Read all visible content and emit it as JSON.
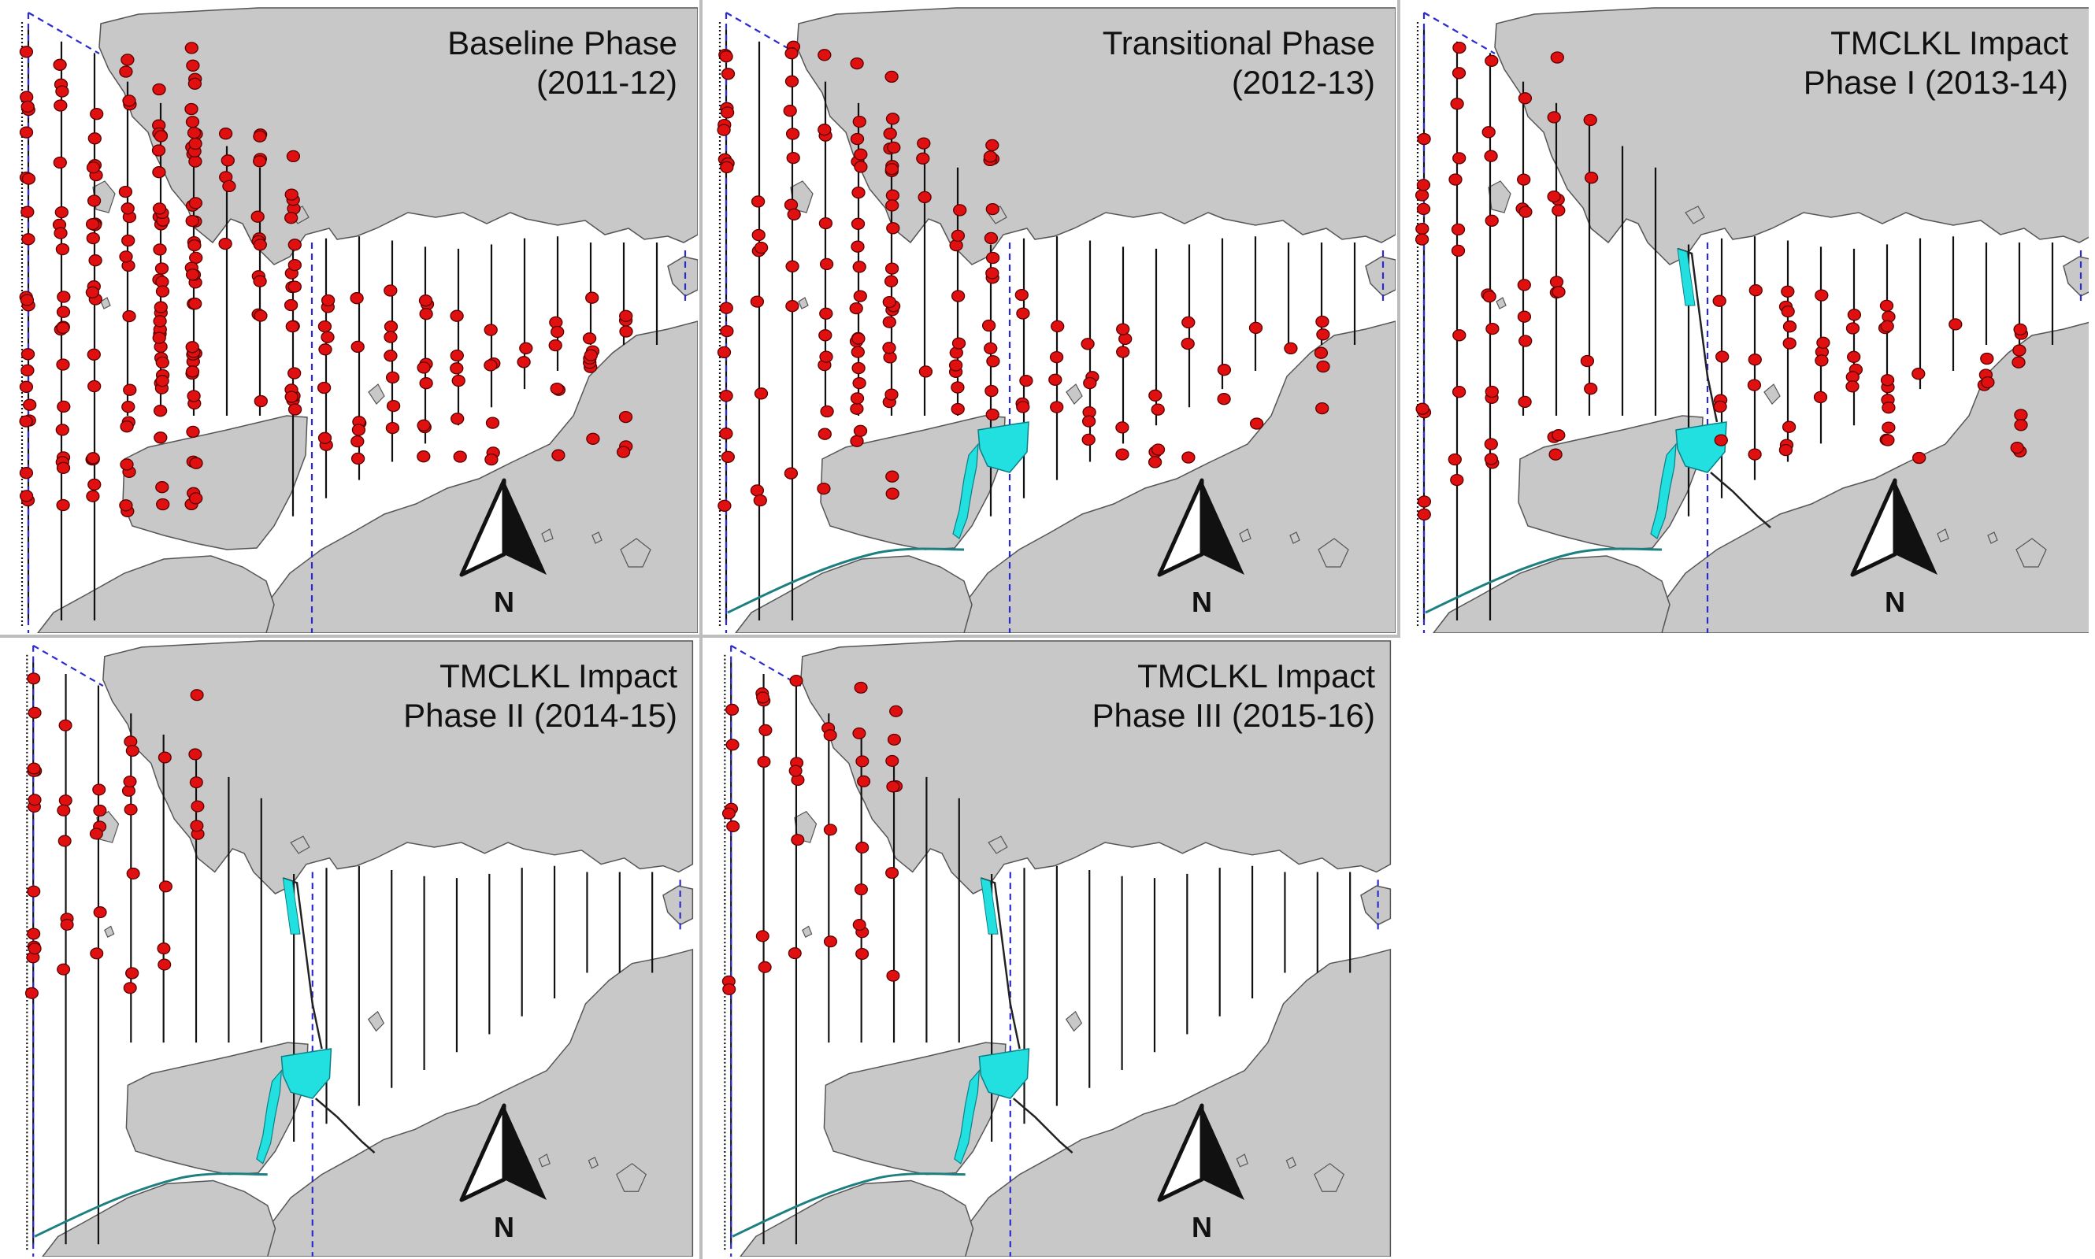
{
  "figure": {
    "panels": [
      {
        "id": "baseline",
        "title_lines": [
          "Baseline Phase",
          "(2011-12)"
        ],
        "reclamation_shown": false,
        "alignment_shown": false,
        "sightings": 260
      },
      {
        "id": "transitional",
        "title_lines": [
          "Transitional Phase",
          "(2012-13)"
        ],
        "reclamation_shown": true,
        "alignment_shown": false,
        "sightings": 160
      },
      {
        "id": "impact1",
        "title_lines": [
          "TMCLKL Impact",
          "Phase I (2013-14)"
        ],
        "reclamation_shown": true,
        "alignment_shown": true,
        "sightings": 110
      },
      {
        "id": "impact2",
        "title_lines": [
          "TMCLKL Impact",
          "Phase II (2014-15)"
        ],
        "reclamation_shown": true,
        "alignment_shown": true,
        "sightings": 45
      },
      {
        "id": "impact3",
        "title_lines": [
          "TMCLKL Impact",
          "Phase III (2015-16)"
        ],
        "reclamation_shown": true,
        "alignment_shown": true,
        "sightings": 40
      }
    ],
    "north_label": "N",
    "colors": {
      "land": "#c8c8c8",
      "land_edge": "#555555",
      "sea": "#ffffff",
      "sighting_fill": "#e01010",
      "sighting_edge": "#5a0000",
      "reclamation": "#22e0e0",
      "boundary": "#2a2ad0",
      "transect": "#111111",
      "divider": "#bdbdbd"
    }
  }
}
